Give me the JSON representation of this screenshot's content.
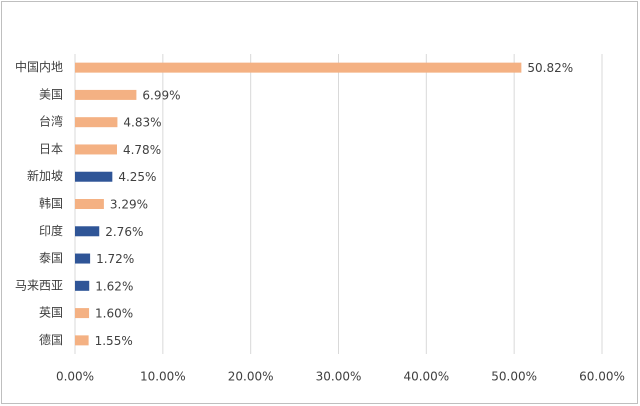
{
  "chart_data": {
    "type": "bar",
    "orientation": "horizontal",
    "categories": [
      "中国内地",
      "美国",
      "台湾",
      "日本",
      "新加坡",
      "韩国",
      "印度",
      "泰国",
      "马来西亚",
      "英国",
      "德国"
    ],
    "values": [
      50.82,
      6.99,
      4.83,
      4.78,
      4.25,
      3.29,
      2.76,
      1.72,
      1.62,
      1.6,
      1.55
    ],
    "value_labels": [
      "50.82%",
      "6.99%",
      "4.83%",
      "4.78%",
      "4.25%",
      "3.29%",
      "2.76%",
      "1.72%",
      "1.62%",
      "1.60%",
      "1.55%"
    ],
    "colors": [
      "#f4b183",
      "#f4b183",
      "#f4b183",
      "#f4b183",
      "#2f5597",
      "#f4b183",
      "#2f5597",
      "#2f5597",
      "#2f5597",
      "#f4b183",
      "#f4b183"
    ],
    "xlim": [
      0,
      60
    ],
    "xticks": [
      {
        "value": 0,
        "label": "0.00%"
      },
      {
        "value": 10,
        "label": "10.00%"
      },
      {
        "value": 20,
        "label": "20.00%"
      },
      {
        "value": 30,
        "label": "30.00%"
      },
      {
        "value": 40,
        "label": "40.00%"
      },
      {
        "value": 50,
        "label": "50.00%"
      },
      {
        "value": 60,
        "label": "60.00%"
      }
    ],
    "grid": true
  }
}
